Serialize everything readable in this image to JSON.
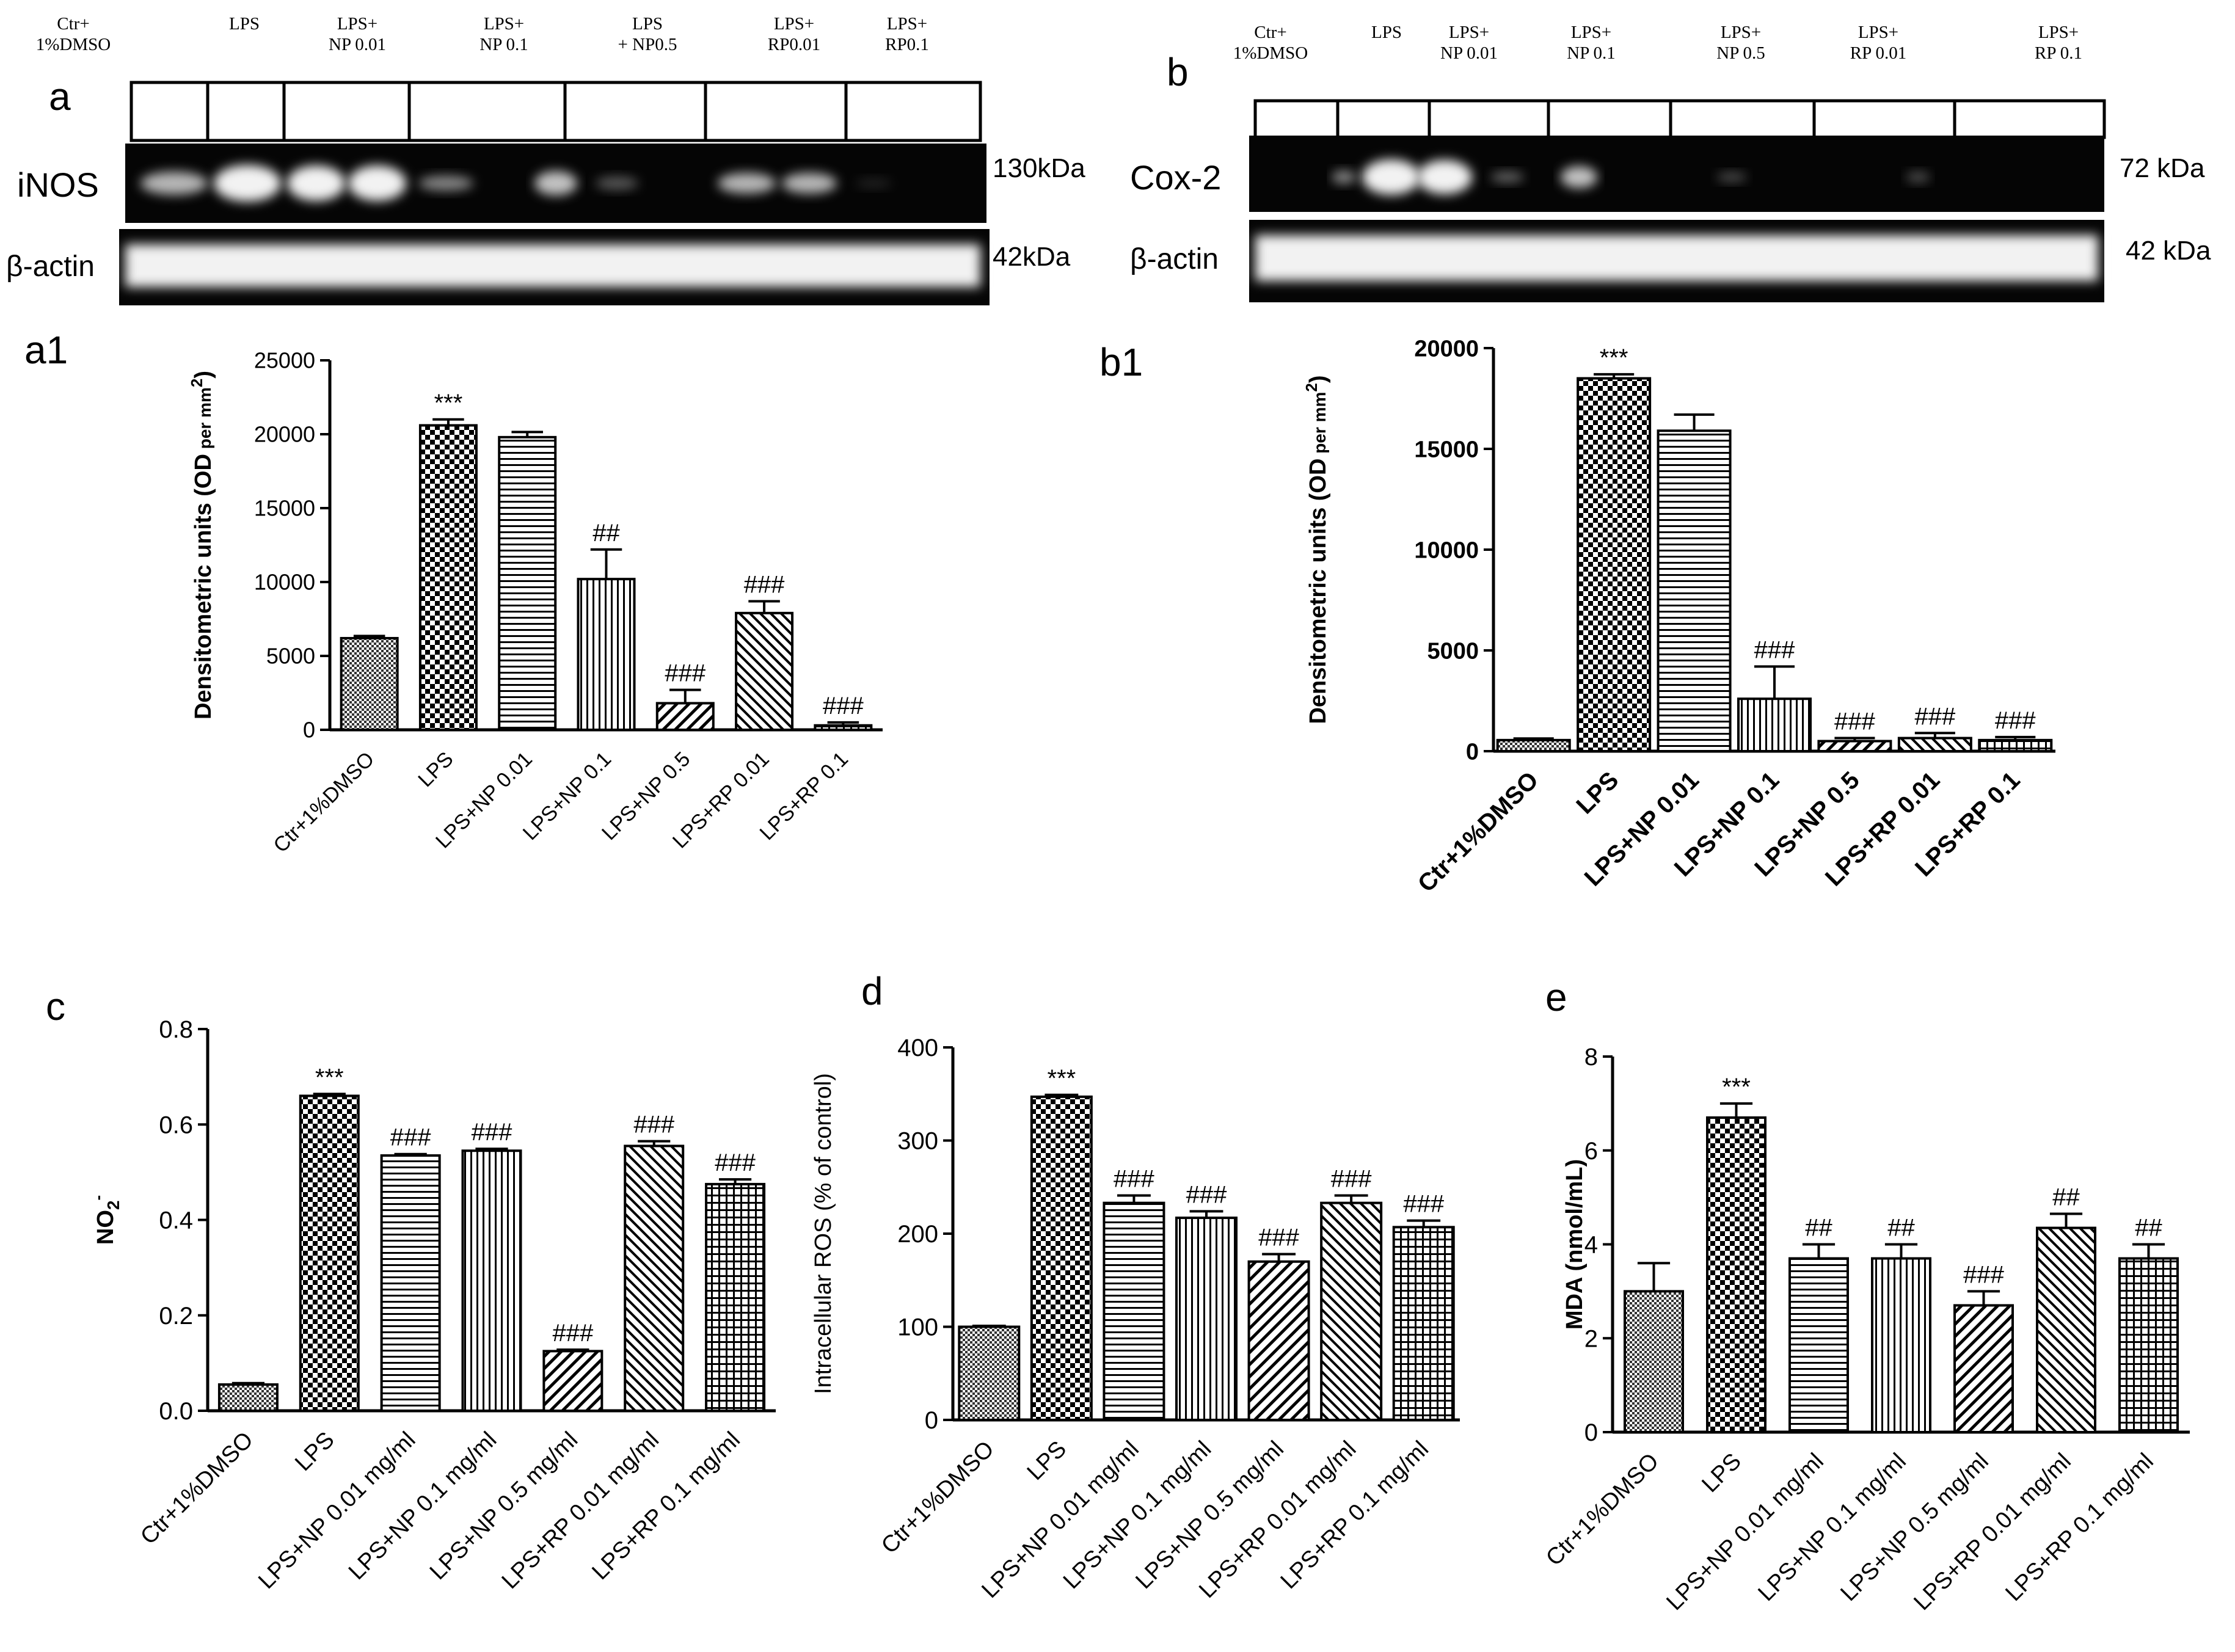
{
  "figure": {
    "colors": {
      "ink": "#000000",
      "background": "#ffffff",
      "blot_bg": "#050505",
      "blot_band": "#f2f2f2"
    }
  },
  "blots": [
    {
      "panel": "a",
      "lanes": [
        "Ctr+\n1%DMSO",
        "LPS",
        "LPS+\nNP 0.01",
        "LPS+\nNP 0.1",
        "LPS\n+ NP0.5",
        "LPS+\nRP0.01",
        "LPS+\nRP0.1"
      ],
      "protein": "iNOS",
      "protein_kda": "130kDa",
      "loading": "β-actin",
      "loading_kda": "42kDa"
    },
    {
      "panel": "b",
      "lanes": [
        "Ctr+\n1%DMSO",
        "LPS",
        "LPS+\nNP 0.01",
        "LPS+\nNP 0.1",
        "LPS+\nNP 0.5",
        "LPS+\nRP 0.01",
        "LPS+\nRP 0.1"
      ],
      "protein": "Cox-2",
      "protein_kda": "72 kDa",
      "loading": "β-actin",
      "loading_kda": "42 kDa"
    }
  ],
  "chart_data": [
    {
      "panel": "a1",
      "type": "bar",
      "categories": [
        "Ctr+1%DMSO",
        "LPS",
        "LPS+NP 0.01",
        "LPS+NP 0.1",
        "LPS+NP 0.5",
        "LPS+RP 0.01",
        "LPS+RP 0.1"
      ],
      "values": [
        6200,
        20600,
        19800,
        10200,
        1800,
        7900,
        300
      ],
      "errors": [
        150,
        400,
        350,
        2000,
        900,
        800,
        200
      ],
      "annotations": [
        "",
        "***",
        "",
        "##",
        "###",
        "###",
        "###"
      ],
      "ylabel": "Densitometric units (OD",
      "ylabel_suffix": " per mm",
      "ylabel_sup": "2",
      "ylabel_end": ")",
      "ylim": [
        0,
        25000
      ],
      "yticks": [
        0,
        5000,
        10000,
        15000,
        20000,
        25000
      ],
      "bold": false
    },
    {
      "panel": "b1",
      "type": "bar",
      "categories": [
        "Ctr+1%DMSO",
        "LPS",
        "LPS+NP 0.01",
        "LPS+NP 0.1",
        "LPS+NP 0.5",
        "LPS+RP 0.01",
        "LPS+RP 0.1"
      ],
      "values": [
        550,
        18500,
        15900,
        2600,
        500,
        650,
        550
      ],
      "errors": [
        80,
        200,
        800,
        1600,
        150,
        250,
        150
      ],
      "annotations": [
        "",
        "***",
        "",
        "###",
        "###",
        "###",
        "###"
      ],
      "ylabel": "Densitometric units (OD",
      "ylabel_suffix": " per mm",
      "ylabel_sup": "2",
      "ylabel_end": ")",
      "ylim": [
        0,
        20000
      ],
      "yticks": [
        0,
        5000,
        10000,
        15000,
        20000
      ],
      "bold": true
    },
    {
      "panel": "c",
      "type": "bar",
      "categories": [
        "Ctr+1%DMSO",
        "LPS",
        "LPS+NP 0.01 mg/ml",
        "LPS+NP 0.1 mg/ml",
        "LPS+NP 0.5 mg/ml",
        "LPS+RP 0.01 mg/ml",
        "LPS+RP 0.1 mg/ml"
      ],
      "values": [
        0.055,
        0.66,
        0.535,
        0.545,
        0.125,
        0.555,
        0.475
      ],
      "errors": [
        0.003,
        0.004,
        0.003,
        0.004,
        0.003,
        0.01,
        0.01
      ],
      "annotations": [
        "",
        "***",
        "###",
        "###",
        "###",
        "###",
        "###"
      ],
      "ylabel": "NO",
      "ylabel_sub": "2",
      "ylabel_sup": "-",
      "ylim": [
        0,
        0.8
      ],
      "yticks": [
        "0.0",
        "0.2",
        "0.4",
        "0.6",
        "0.8"
      ],
      "bold": false
    },
    {
      "panel": "d",
      "type": "bar",
      "categories": [
        "Ctr+1%DMSO",
        "LPS",
        "LPS+NP 0.01 mg/ml",
        "LPS+NP 0.1 mg/ml",
        "LPS+NP 0.5 mg/ml",
        "LPS+RP 0.01 mg/ml",
        "LPS+RP 0.1 mg/ml"
      ],
      "values": [
        100,
        347,
        233,
        217,
        170,
        233,
        207
      ],
      "errors": [
        1,
        2,
        8,
        7,
        8,
        8,
        7
      ],
      "annotations": [
        "",
        "***",
        "###",
        "###",
        "###",
        "###",
        "###"
      ],
      "ylabel": "Intracellular ROS (% of control)",
      "ylim": [
        0,
        400
      ],
      "yticks": [
        0,
        100,
        200,
        300,
        400
      ],
      "bold": false
    },
    {
      "panel": "e",
      "type": "bar",
      "categories": [
        "Ctr+1%DMSO",
        "LPS",
        "LPS+NP 0.01 mg/ml",
        "LPS+NP 0.1 mg/ml",
        "LPS+NP 0.5 mg/ml",
        "LPS+RP 0.01 mg/ml",
        "LPS+RP 0.1 mg/ml"
      ],
      "values": [
        3.0,
        6.7,
        3.7,
        3.7,
        2.7,
        4.35,
        3.7
      ],
      "errors": [
        0.6,
        0.3,
        0.3,
        0.3,
        0.3,
        0.3,
        0.3
      ],
      "annotations": [
        "",
        "***",
        "##",
        "##",
        "###",
        "##",
        "##"
      ],
      "ylabel": "MDA (nmol/mL)",
      "ylim": [
        0,
        8
      ],
      "yticks": [
        0,
        2,
        4,
        6,
        8
      ],
      "bold": false
    }
  ]
}
